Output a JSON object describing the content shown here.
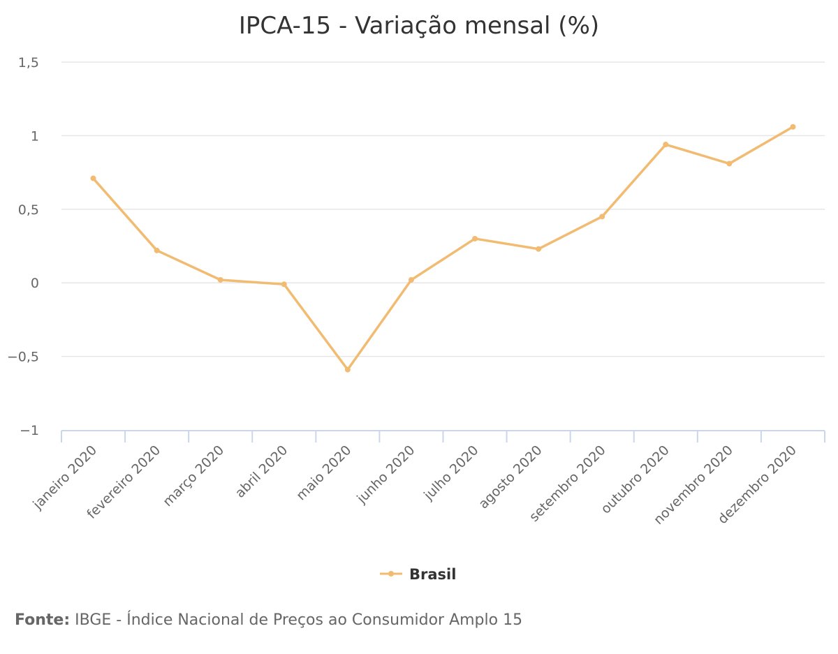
{
  "chart_data": {
    "type": "line",
    "title": "IPCA-15 - Variação mensal (%)",
    "categories": [
      "janeiro 2020",
      "fevereiro 2020",
      "março 2020",
      "abril 2020",
      "maio 2020",
      "junho 2020",
      "julho 2020",
      "agosto 2020",
      "setembro 2020",
      "outubro 2020",
      "novembro 2020",
      "dezembro 2020"
    ],
    "series": [
      {
        "name": "Brasil",
        "values": [
          0.71,
          0.22,
          0.02,
          -0.01,
          -0.59,
          0.02,
          0.3,
          0.23,
          0.45,
          0.94,
          0.81,
          1.06
        ],
        "color": "#f1bb72"
      }
    ],
    "ylim": [
      -1,
      1.5
    ],
    "yticks": [
      -1,
      -0.5,
      0,
      0.5,
      1,
      1.5
    ],
    "ytick_labels": [
      "−1",
      "−0,5",
      "0",
      "0,5",
      "1",
      "1,5"
    ],
    "grid": true,
    "legend_position": "bottom-center",
    "xlabel": "",
    "ylabel": ""
  },
  "footer": {
    "source_label": "Fonte:",
    "source_text": " IBGE - Índice Nacional de Preços ao Consumidor Amplo 15"
  }
}
